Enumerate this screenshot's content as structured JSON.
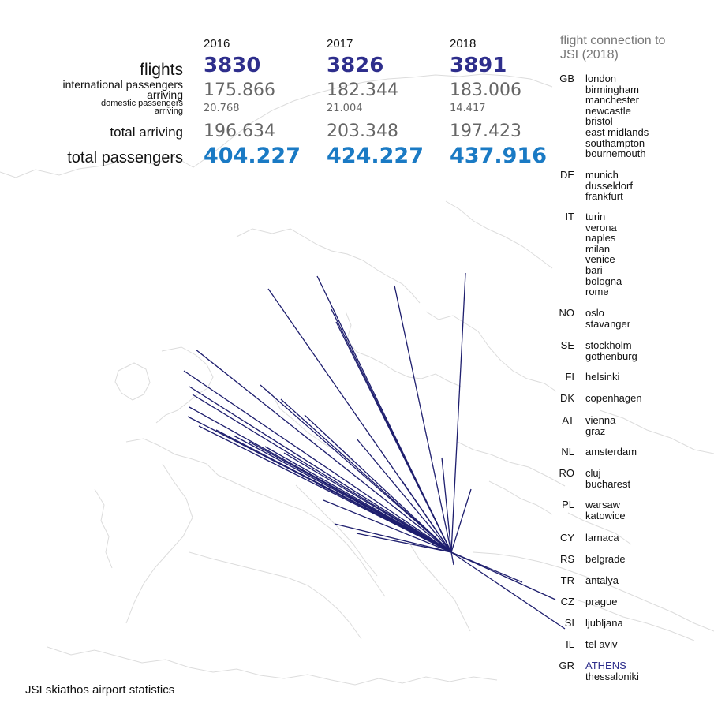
{
  "title": "JSI skiathos airport statistics",
  "chart_data": {
    "type": "table",
    "years": [
      "2016",
      "2017",
      "2018"
    ],
    "rows": [
      {
        "label": "flights",
        "values": [
          "3830",
          "3826",
          "3891"
        ]
      },
      {
        "label": "international passengers arriving",
        "values": [
          "175.866",
          "182.344",
          "183.006"
        ]
      },
      {
        "label": "domestic passengers arriving",
        "values": [
          "20.768",
          "21.004",
          "14.417"
        ]
      },
      {
        "label": "total arriving",
        "values": [
          "196.634",
          "203.348",
          "197.423"
        ]
      },
      {
        "label": "total passengers",
        "values": [
          "404.227",
          "424.227",
          "437.916"
        ]
      }
    ]
  },
  "labels": {
    "flights": "flights",
    "intl_1": "international passengers",
    "intl_2": "arriving",
    "dom_1": "domestic passengers",
    "dom_2": "arriving",
    "total_arriving": "total arriving",
    "total_passengers": "total passengers"
  },
  "connections": {
    "title_line1": "flight connection to",
    "title_line2": "JSI (2018)",
    "countries": [
      {
        "code": "GB",
        "cities": [
          "london",
          "birmingham",
          "manchester",
          "newcastle",
          "bristol",
          "east midlands",
          "southampton",
          "bournemouth"
        ]
      },
      {
        "code": "DE",
        "cities": [
          "munich",
          "dusseldorf",
          "frankfurt"
        ]
      },
      {
        "code": "IT",
        "cities": [
          "turin",
          "verona",
          "naples",
          "milan",
          "venice",
          "bari",
          "bologna",
          "rome"
        ]
      },
      {
        "code": "NO",
        "cities": [
          "oslo",
          "stavanger"
        ]
      },
      {
        "code": "SE",
        "cities": [
          "stockholm",
          "gothenburg"
        ]
      },
      {
        "code": "FI",
        "cities": [
          "helsinki"
        ]
      },
      {
        "code": "DK",
        "cities": [
          "copenhagen"
        ]
      },
      {
        "code": "AT",
        "cities": [
          "vienna",
          "graz"
        ]
      },
      {
        "code": "NL",
        "cities": [
          "amsterdam"
        ]
      },
      {
        "code": "RO",
        "cities": [
          "cluj",
          "bucharest"
        ]
      },
      {
        "code": "PL",
        "cities": [
          "warsaw",
          "katowice"
        ]
      },
      {
        "code": "CY",
        "cities": [
          "larnaca"
        ]
      },
      {
        "code": "RS",
        "cities": [
          "belgrade"
        ]
      },
      {
        "code": "TR",
        "cities": [
          "antalya"
        ]
      },
      {
        "code": "CZ",
        "cities": [
          "prague"
        ]
      },
      {
        "code": "SI",
        "cities": [
          "ljubljana"
        ]
      },
      {
        "code": "IL",
        "cities": [
          "tel aviv"
        ]
      },
      {
        "code": "GR",
        "cities": [
          "ATHENS",
          "thessaloniki"
        ],
        "highlight": "ATHENS"
      }
    ]
  },
  "colors": {
    "route_line": "#1e1e6e",
    "flights_value": "#2e2e8c",
    "secondary_value": "#666666",
    "total_value": "#1a7ac4",
    "map_outline": "#dcdcdc",
    "highlight_city": "#2e2e8c"
  }
}
